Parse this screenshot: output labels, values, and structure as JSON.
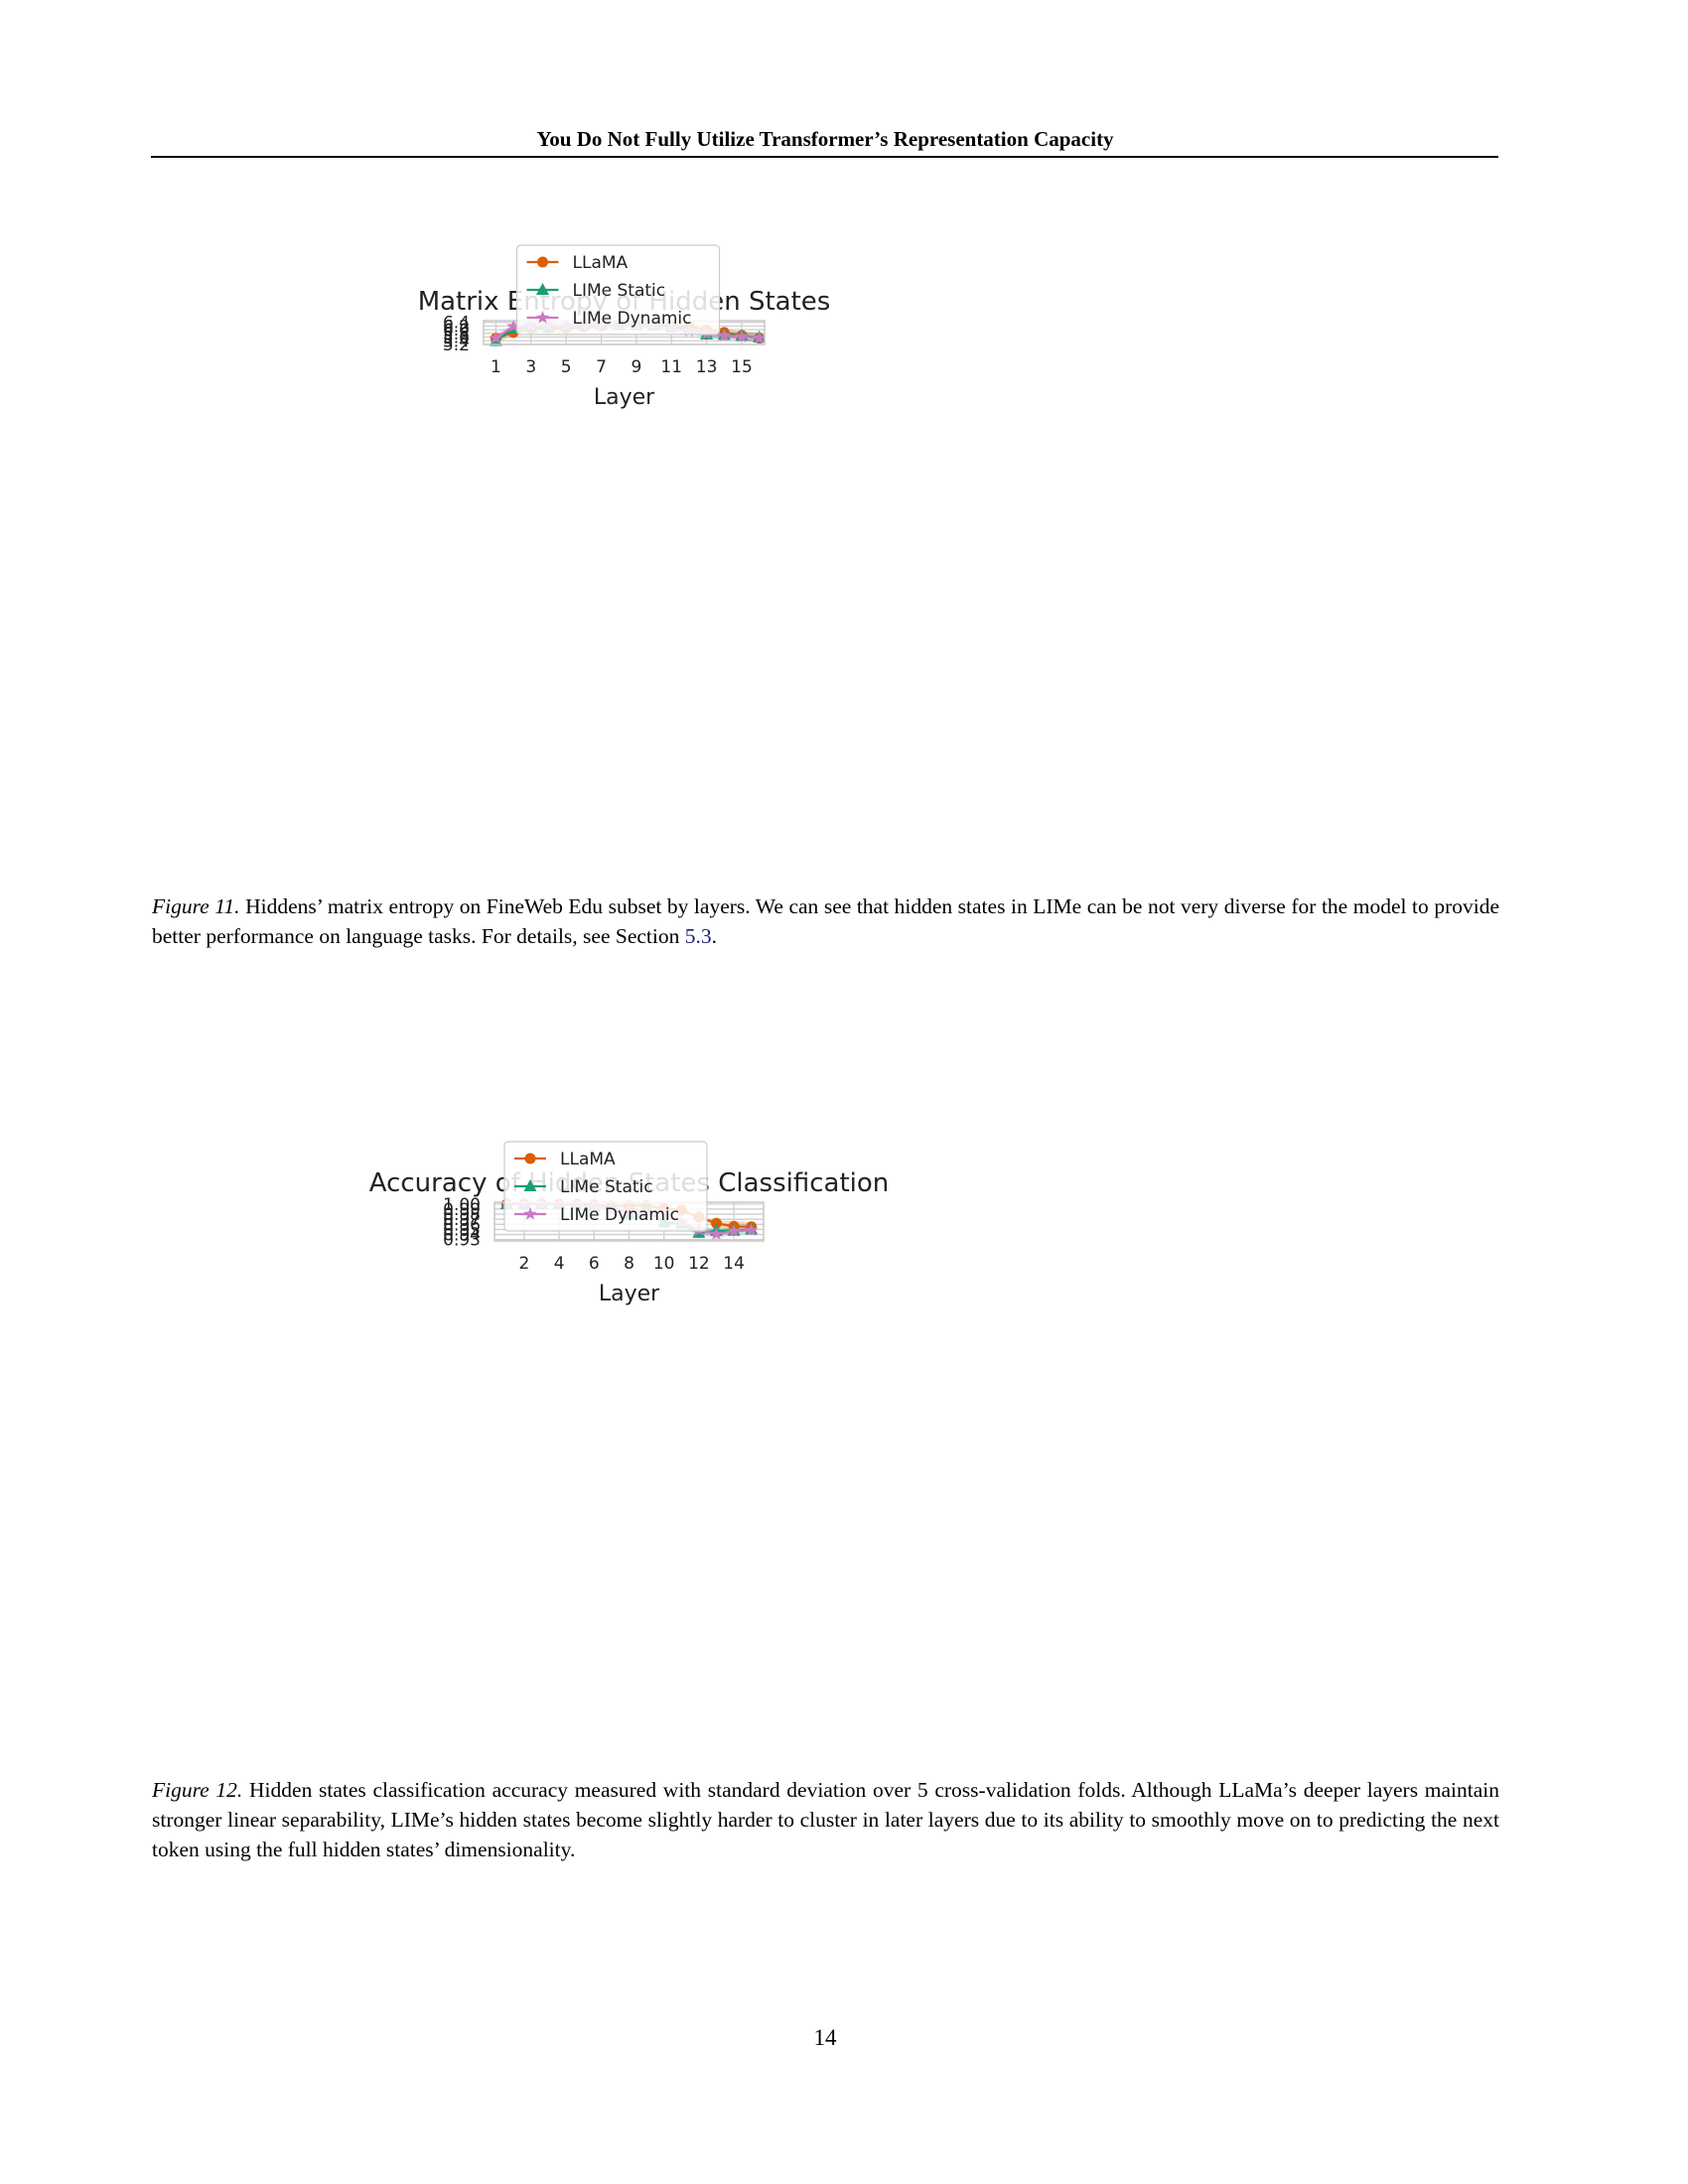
{
  "header": {
    "running_title": "You Do Not Fully Utilize Transformer’s Representation Capacity"
  },
  "page_number": "14",
  "colors": {
    "LLaMA": "#d95f02",
    "LIMe Static": "#1b9e77",
    "LIMe Dynamic": "#cc79c0"
  },
  "figures": [
    {
      "label": "Figure 11.",
      "caption": " Hiddens’ matrix entropy on FineWeb Edu subset by layers. We can see that hidden states in LIMe can be not very diverse for the model to provide better performance on language tasks. For details, see Section ",
      "ref": "5.3",
      "caption_end": "."
    },
    {
      "label": "Figure 12.",
      "caption": " Hidden states classification accuracy measured with standard deviation over 5 cross-validation folds. Although LLaMa’s deeper layers maintain stronger linear separability, LIMe’s hidden states become slightly harder to cluster in later layers due to its ability to smoothly move on to predicting the next token using the full hidden states’ dimensionality.",
      "ref": "",
      "caption_end": ""
    }
  ],
  "chart_data": [
    {
      "type": "line",
      "title": "Matrix Entropy of Hidden States",
      "xlabel": "Layer",
      "ylabel": "",
      "xlim": [
        0.3,
        16.3
      ],
      "ylim": [
        5.2,
        6.49
      ],
      "xticks": [
        1,
        3,
        5,
        7,
        9,
        11,
        13,
        15
      ],
      "yticks": [
        5.2,
        5.4,
        5.6,
        5.8,
        6.0,
        6.2,
        6.4
      ],
      "ytick_labels": [
        "5.2",
        "5.4",
        "5.6",
        "5.8",
        "6.0",
        "6.2",
        "6.4"
      ],
      "grid": true,
      "legend": "lower center",
      "x": [
        1,
        2,
        3,
        4,
        5,
        6,
        7,
        8,
        9,
        10,
        11,
        12,
        13,
        14,
        15,
        16
      ],
      "series": [
        {
          "name": "LLaMA",
          "marker": "circle",
          "values": [
            5.53,
            5.85,
            6.05,
            6.09,
            6.07,
            6.15,
            6.2,
            6.26,
            6.27,
            6.25,
            6.23,
            6.16,
            5.99,
            5.85,
            5.69,
            5.54
          ],
          "upper": [
            5.72,
            6.01,
            6.2,
            6.2,
            6.19,
            6.25,
            6.31,
            6.39,
            6.41,
            6.4,
            6.38,
            6.34,
            6.18,
            6.05,
            5.9,
            5.82
          ],
          "lower": [
            5.3,
            5.65,
            5.88,
            5.96,
            5.94,
            6.03,
            6.06,
            6.11,
            6.12,
            6.1,
            6.07,
            5.96,
            5.79,
            5.63,
            5.44,
            5.26
          ]
        },
        {
          "name": "LIMe Static",
          "marker": "triangle",
          "values": [
            5.39,
            6.06,
            6.14,
            6.12,
            6.2,
            6.22,
            6.27,
            6.26,
            6.27,
            6.22,
            6.17,
            6.02,
            5.74,
            5.72,
            5.67,
            5.58
          ],
          "upper": [
            5.57,
            6.2,
            6.29,
            6.28,
            6.35,
            6.39,
            6.43,
            6.42,
            6.43,
            6.38,
            6.32,
            6.15,
            5.97,
            5.95,
            5.92,
            5.85
          ],
          "lower": [
            5.25,
            5.92,
            5.99,
            5.96,
            6.05,
            6.06,
            6.1,
            6.1,
            6.11,
            6.06,
            6.01,
            5.86,
            5.51,
            5.48,
            5.43,
            5.3
          ]
        },
        {
          "name": "LIMe Dynamic",
          "marker": "star",
          "values": [
            5.55,
            6.18,
            6.23,
            6.23,
            6.2,
            6.22,
            6.24,
            6.26,
            6.22,
            6.2,
            6.05,
            5.92,
            5.78,
            5.68,
            5.62,
            5.55
          ],
          "upper": [
            5.75,
            6.34,
            6.4,
            6.4,
            6.37,
            6.39,
            6.41,
            6.43,
            6.39,
            6.36,
            6.22,
            6.09,
            5.96,
            5.86,
            5.8,
            5.75
          ],
          "lower": [
            5.35,
            6.02,
            6.06,
            6.06,
            6.03,
            6.05,
            6.07,
            6.09,
            6.05,
            6.04,
            5.88,
            5.75,
            5.6,
            5.5,
            5.44,
            5.28
          ]
        }
      ]
    },
    {
      "type": "line",
      "title": "Accuracy of Hidden States Classification",
      "xlabel": "Layer",
      "ylabel": "",
      "xlim": [
        0.3,
        15.7
      ],
      "ylim": [
        0.9274,
        1.0036
      ],
      "xticks": [
        2,
        4,
        6,
        8,
        10,
        12,
        14
      ],
      "yticks": [
        0.93,
        0.94,
        0.95,
        0.96,
        0.97,
        0.98,
        0.99,
        1.0
      ],
      "ytick_labels": [
        "0.93",
        "0.94",
        "0.95",
        "0.96",
        "0.97",
        "0.98",
        "0.99",
        "1.00"
      ],
      "grid": true,
      "legend": "lower left",
      "x": [
        1,
        2,
        3,
        4,
        5,
        6,
        7,
        8,
        9,
        10,
        11,
        12,
        13,
        14,
        15
      ],
      "series": [
        {
          "name": "LLaMA",
          "marker": "circle",
          "values": [
            1.0,
            1.0,
            1.0,
            1.0,
            0.9997,
            0.9985,
            0.996,
            0.9967,
            0.9969,
            0.9912,
            0.988,
            0.974,
            0.962,
            0.956,
            0.9553
          ],
          "upper": [
            1.0,
            1.0,
            1.0,
            1.0,
            1.0,
            0.9995,
            0.998,
            0.9982,
            0.9982,
            0.996,
            0.991,
            0.9755,
            0.9675,
            0.967,
            0.9645
          ],
          "lower": [
            1.0,
            1.0,
            1.0,
            1.0,
            0.9992,
            0.9975,
            0.994,
            0.9952,
            0.9956,
            0.9865,
            0.9865,
            0.9725,
            0.9565,
            0.945,
            0.9462
          ]
        },
        {
          "name": "LIMe Static",
          "marker": "triangle",
          "values": [
            0.9997,
            0.9999,
            0.9998,
            0.9997,
            0.9987,
            0.9954,
            0.9939,
            0.981,
            0.9875,
            0.9638,
            0.9613,
            0.9432,
            0.9472,
            0.9474,
            0.9498
          ],
          "upper": [
            1.0,
            1.0,
            1.0,
            1.0,
            0.9995,
            0.997,
            0.996,
            0.9995,
            0.991,
            0.9715,
            0.968,
            0.9495,
            0.953,
            0.955,
            0.9565
          ],
          "lower": [
            0.9994,
            0.9998,
            0.9996,
            0.9994,
            0.998,
            0.9938,
            0.9915,
            0.9625,
            0.984,
            0.9565,
            0.955,
            0.937,
            0.9405,
            0.939,
            0.9432
          ]
        },
        {
          "name": "LIMe Dynamic",
          "marker": "star",
          "values": [
            0.9999,
            0.9999,
            0.9998,
            0.9996,
            0.9984,
            0.9958,
            0.9886,
            0.986,
            0.9828,
            0.979,
            0.9643,
            0.9487,
            0.941,
            0.9467,
            0.9485
          ],
          "upper": [
            1.0,
            1.0,
            1.0,
            0.9999,
            0.9992,
            0.9978,
            0.9915,
            0.9905,
            0.9875,
            0.984,
            0.968,
            0.9565,
            0.952,
            0.952,
            0.951
          ],
          "lower": [
            0.9997,
            0.9998,
            0.9996,
            0.9993,
            0.9975,
            0.9935,
            0.9855,
            0.9815,
            0.9775,
            0.974,
            0.96,
            0.942,
            0.93,
            0.941,
            0.946
          ]
        }
      ]
    }
  ]
}
